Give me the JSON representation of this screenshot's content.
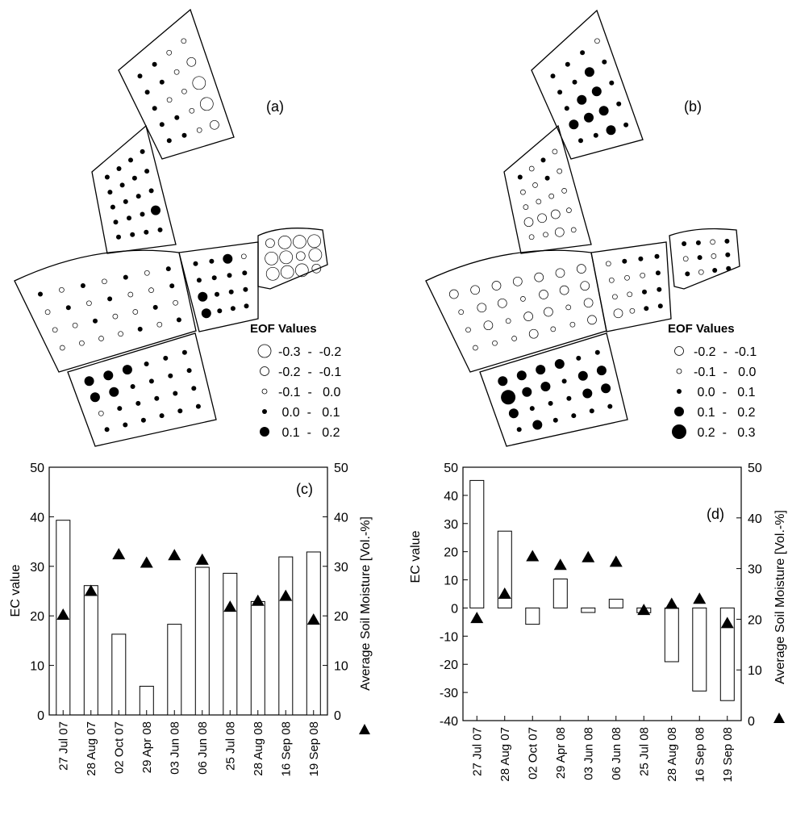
{
  "maps": [
    {
      "panel_label": "(a)",
      "legend_title": "EOF Values",
      "legend": [
        {
          "range": "-0.3  -  -0.2",
          "size": "large",
          "fill": "open"
        },
        {
          "range": "-0.2  -  -0.1",
          "size": "medium",
          "fill": "open"
        },
        {
          "range": "-0.1  -   0.0",
          "size": "small",
          "fill": "open"
        },
        {
          "range": " 0.0  -   0.1",
          "size": "small",
          "fill": "filled"
        },
        {
          "range": " 0.1  -   0.2",
          "size": "medium",
          "fill": "filled"
        }
      ]
    },
    {
      "panel_label": "(b)",
      "legend_title": "EOF Values",
      "legend": [
        {
          "range": "-0.2  -  -0.1",
          "size": "medium",
          "fill": "open"
        },
        {
          "range": "-0.1  -   0.0",
          "size": "small",
          "fill": "open"
        },
        {
          "range": " 0.0  -   0.1",
          "size": "small",
          "fill": "filled"
        },
        {
          "range": " 0.1  -   0.2",
          "size": "medium",
          "fill": "filled"
        },
        {
          "range": " 0.2  -   0.3",
          "size": "large",
          "fill": "filled"
        }
      ]
    }
  ],
  "chart_data": [
    {
      "type": "bar",
      "panel_label": "(c)",
      "ylabel": "EC value",
      "y2label": "Average Soil Moisture [Vol.-%]",
      "ylim": [
        0,
        50
      ],
      "y2lim": [
        0,
        50
      ],
      "yticks": [
        0,
        10,
        20,
        30,
        40,
        50
      ],
      "y2ticks": [
        0,
        10,
        20,
        30,
        40,
        50
      ],
      "categories": [
        "27 Jul 07",
        "28 Aug 07",
        "02 Oct 07",
        "29 Apr 08",
        "03 Jun 08",
        "06 Jun 08",
        "25 Jul 08",
        "28 Aug 08",
        "16 Sep 08",
        "19 Sep 08"
      ],
      "series": [
        {
          "kind": "bar",
          "values": [
            39.3,
            26.1,
            16.3,
            5.8,
            18.3,
            29.8,
            28.6,
            22.9,
            31.9,
            32.9
          ]
        },
        {
          "kind": "marker",
          "axis": "right",
          "values": [
            20.2,
            25.0,
            32.4,
            30.7,
            32.2,
            31.3,
            21.8,
            23.0,
            24.0,
            19.2
          ]
        }
      ]
    },
    {
      "type": "bar",
      "panel_label": "(d)",
      "ylabel": "EC value",
      "y2label": "Average Soil Moisture [Vol.-%]",
      "ylim": [
        -40,
        50
      ],
      "y2lim": [
        0,
        50
      ],
      "yticks": [
        -40,
        -30,
        -20,
        -10,
        0,
        10,
        20,
        30,
        40,
        50
      ],
      "y2ticks": [
        0,
        10,
        20,
        30,
        40,
        50
      ],
      "categories": [
        "27 Jul 07",
        "28 Aug 07",
        "02 Oct 07",
        "29 Apr 08",
        "03 Jun 08",
        "06 Jun 08",
        "25 Jul 08",
        "28 Aug 08",
        "16 Sep 08",
        "19 Sep 08"
      ],
      "series": [
        {
          "kind": "bar",
          "values": [
            45.3,
            27.3,
            -5.8,
            10.3,
            -1.6,
            3.1,
            -1.7,
            -19.1,
            -29.5,
            -32.9
          ]
        },
        {
          "kind": "marker",
          "axis": "right",
          "values": [
            20.2,
            25.0,
            32.4,
            30.7,
            32.2,
            31.3,
            21.8,
            23.0,
            24.0,
            19.2
          ]
        }
      ]
    }
  ]
}
